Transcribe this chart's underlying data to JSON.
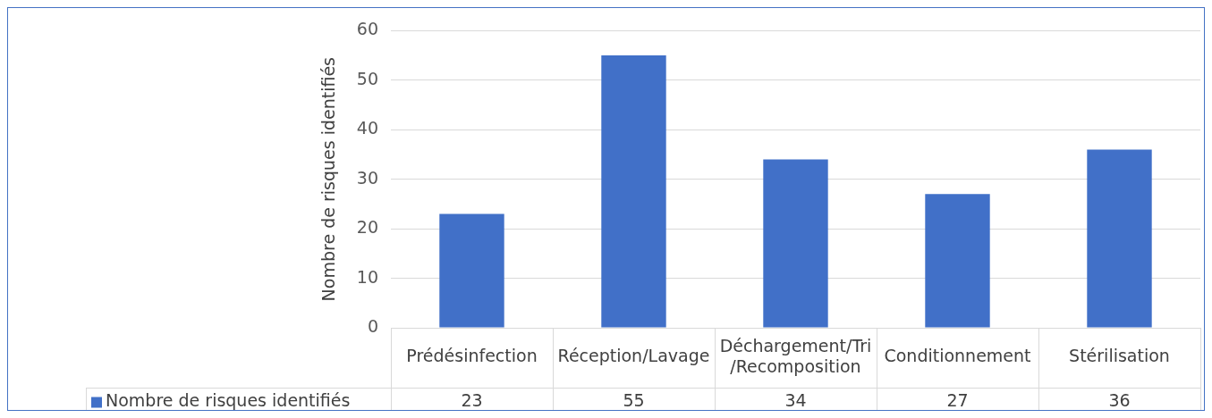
{
  "chart_data": {
    "type": "bar",
    "ylabel": "Nombre de risques identifiés",
    "categories": [
      "Prédésinfection",
      "Réception/Lavage",
      "Déchargement/Tri/Recomposition",
      "Conditionnement",
      "Stérilisation"
    ],
    "series": [
      {
        "name": "Nombre de risques identifiés",
        "color": "#4170c8",
        "values": [
          23,
          55,
          34,
          27,
          36
        ]
      }
    ],
    "ylim": [
      0,
      60
    ],
    "yticks": [
      0,
      10,
      20,
      30,
      40,
      50,
      60
    ],
    "grid": "y",
    "legend": "bottom",
    "data_labels": true
  }
}
